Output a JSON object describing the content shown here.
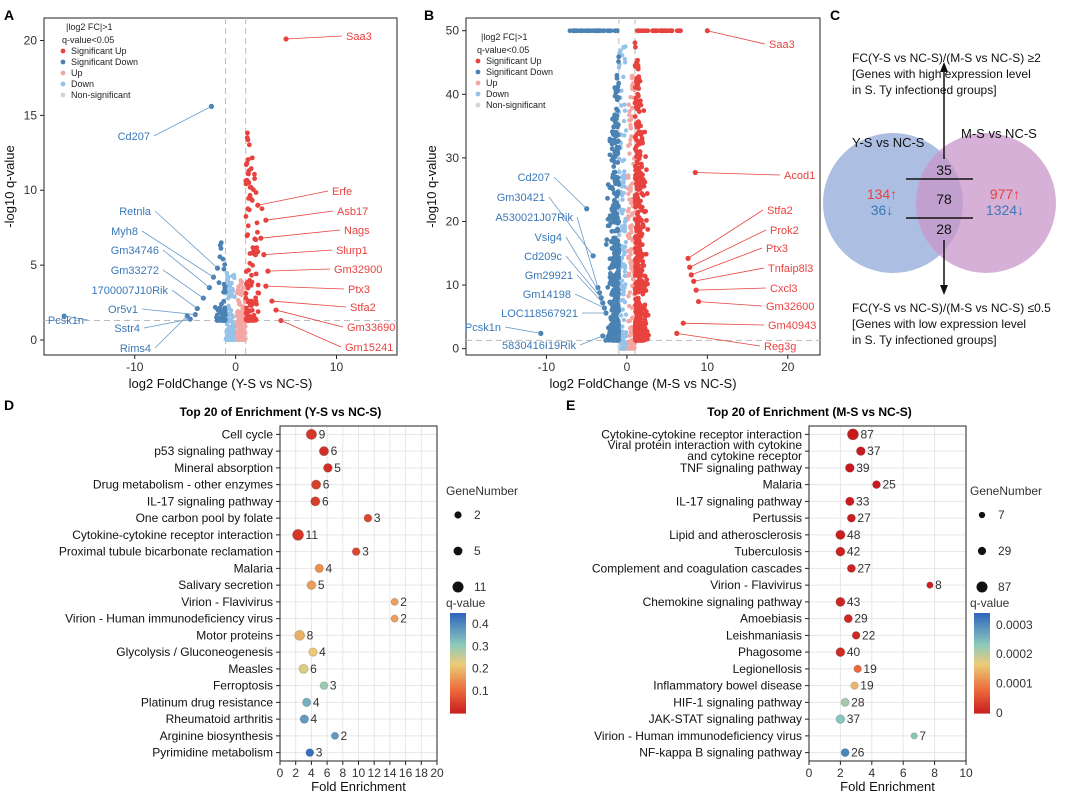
{
  "panels": {
    "a": "A",
    "b": "B",
    "c": "C",
    "d": "D",
    "e": "E"
  },
  "colors": {
    "sig_up": "#e8423f",
    "sig_down": "#4a82b4",
    "up": "#f4a6a3",
    "down": "#94c2e8",
    "nonsig": "#cfd5da"
  },
  "volcano_legend": {
    "line1": "|log2 FC|>1",
    "line2": "q-value<0.05",
    "items": [
      "Significant Up",
      "Significant Down",
      "Up",
      "Down",
      "Non-significant"
    ]
  },
  "chart_data": [
    {
      "type": "scatter",
      "name": "volcano-ys",
      "xlabel": "log2 FoldChange (Y-S vs NC-S)",
      "ylabel": "-log10 q-value",
      "xlim": [
        -19,
        16
      ],
      "ylim": [
        -1,
        21.5
      ],
      "xticks": [
        -10,
        0,
        10
      ],
      "yticks": [
        0,
        5,
        10,
        15,
        20
      ],
      "thresholds": {
        "x": [
          -1,
          1
        ],
        "y": 1.3
      },
      "up_labels": [
        {
          "gene": "Saa3",
          "x": 5.0,
          "y": 20.1
        },
        {
          "gene": "Erfe",
          "x": 2.2,
          "y": 9.0
        },
        {
          "gene": "Asb17",
          "x": 3.0,
          "y": 8.0
        },
        {
          "gene": "Nags",
          "x": 2.5,
          "y": 6.8
        },
        {
          "gene": "Slurp1",
          "x": 2.8,
          "y": 5.7
        },
        {
          "gene": "Gm32900",
          "x": 3.2,
          "y": 4.6
        },
        {
          "gene": "Ptx3",
          "x": 3.0,
          "y": 3.6
        },
        {
          "gene": "Stfa2",
          "x": 3.6,
          "y": 2.6
        },
        {
          "gene": "Gm33690",
          "x": 4.0,
          "y": 2.0
        },
        {
          "gene": "Gm15241",
          "x": 4.5,
          "y": 1.3
        }
      ],
      "down_labels": [
        {
          "gene": "Cd207",
          "x": -2.4,
          "y": 15.6
        },
        {
          "gene": "Retnla",
          "x": -1.8,
          "y": 4.8
        },
        {
          "gene": "Myh8",
          "x": -2.2,
          "y": 4.2
        },
        {
          "gene": "Gm34746",
          "x": -2.6,
          "y": 3.5
        },
        {
          "gene": "Gm33272",
          "x": -3.2,
          "y": 2.8
        },
        {
          "gene": "1700007J10Rik",
          "x": -3.8,
          "y": 2.1
        },
        {
          "gene": "Or5v1",
          "x": -4.0,
          "y": 1.7
        },
        {
          "gene": "Pcsk1n",
          "x": -17.0,
          "y": 1.6
        },
        {
          "gene": "Sstr4",
          "x": -4.5,
          "y": 1.4
        },
        {
          "gene": "Rims4",
          "x": -4.8,
          "y": 1.6
        }
      ]
    },
    {
      "type": "scatter",
      "name": "volcano-ms",
      "xlabel": "log2 FoldChange (M-S vs NC-S)",
      "ylabel": "-log10 q-value",
      "xlim": [
        -20,
        24
      ],
      "ylim": [
        -1,
        52
      ],
      "xticks": [
        -10,
        0,
        10,
        20
      ],
      "yticks": [
        0,
        10,
        20,
        30,
        40,
        50
      ],
      "thresholds": {
        "x": [
          -1,
          1
        ],
        "y": 1.3
      },
      "up_labels": [
        {
          "gene": "Saa3",
          "x": 10.0,
          "y": 50.0
        },
        {
          "gene": "Acod1",
          "x": 8.5,
          "y": 27.7
        },
        {
          "gene": "Stfa2",
          "x": 7.6,
          "y": 14.2
        },
        {
          "gene": "Prok2",
          "x": 7.8,
          "y": 12.8
        },
        {
          "gene": "Ptx3",
          "x": 8.0,
          "y": 11.6
        },
        {
          "gene": "Tnfaip8l3",
          "x": 8.3,
          "y": 10.6
        },
        {
          "gene": "Cxcl3",
          "x": 8.6,
          "y": 9.2
        },
        {
          "gene": "Gm32600",
          "x": 8.9,
          "y": 7.4
        },
        {
          "gene": "Gm40943",
          "x": 7.0,
          "y": 4.0
        },
        {
          "gene": "Reg3g",
          "x": 6.2,
          "y": 2.4
        }
      ],
      "down_labels": [
        {
          "gene": "Cd207",
          "x": -5.0,
          "y": 22.0
        },
        {
          "gene": "Gm30421",
          "x": -4.2,
          "y": 14.6
        },
        {
          "gene": "A530021J07Rik",
          "x": -3.6,
          "y": 9.6
        },
        {
          "gene": "Vsig4",
          "x": -3.4,
          "y": 8.8
        },
        {
          "gene": "Cd209c",
          "x": -3.2,
          "y": 8.0
        },
        {
          "gene": "Gm29921",
          "x": -3.0,
          "y": 7.2
        },
        {
          "gene": "Gm14198",
          "x": -2.8,
          "y": 6.4
        },
        {
          "gene": "LOC118567921",
          "x": -2.6,
          "y": 5.6
        },
        {
          "gene": "Pcsk1n",
          "x": -10.7,
          "y": 2.4
        },
        {
          "gene": "5830416I19Rik",
          "x": -3.0,
          "y": 2.0
        }
      ]
    },
    {
      "type": "bubble",
      "name": "enrichment-ys",
      "title": "Top 20 of  Enrichment (Y-S vs NC-S)",
      "xlabel": "Fold Enrichment",
      "xlim": [
        0,
        20
      ],
      "xticks": [
        0,
        2,
        4,
        6,
        8,
        10,
        12,
        14,
        16,
        18,
        20
      ],
      "legend_size_title": "GeneNumber",
      "legend_size_values": [
        2,
        5,
        11
      ],
      "legend_color_title": "q-value",
      "colorbar_max": 0.45,
      "colorbar_ticks": [
        0.4,
        0.3,
        0.2,
        0.1
      ],
      "terms": [
        {
          "term": "Cell cycle",
          "fe": 4.0,
          "n": 9,
          "q": 0.04
        },
        {
          "term": "p53 signaling pathway",
          "fe": 5.6,
          "n": 6,
          "q": 0.03
        },
        {
          "term": "Mineral absorption",
          "fe": 6.1,
          "n": 5,
          "q": 0.03
        },
        {
          "term": "Drug metabolism - other enzymes",
          "fe": 4.6,
          "n": 6,
          "q": 0.05
        },
        {
          "term": "IL-17 signaling pathway",
          "fe": 4.5,
          "n": 6,
          "q": 0.05
        },
        {
          "term": "One carbon pool by folate",
          "fe": 11.2,
          "n": 3,
          "q": 0.06
        },
        {
          "term": "Cytokine-cytokine receptor interaction",
          "fe": 2.3,
          "n": 11,
          "q": 0.04
        },
        {
          "term": "Proximal tubule bicarbonate reclamation",
          "fe": 9.7,
          "n": 3,
          "q": 0.06
        },
        {
          "term": "Malaria",
          "fe": 5.0,
          "n": 4,
          "q": 0.15
        },
        {
          "term": "Salivary secretion",
          "fe": 4.0,
          "n": 5,
          "q": 0.17
        },
        {
          "term": "Virion - Flavivirus",
          "fe": 14.6,
          "n": 2,
          "q": 0.17
        },
        {
          "term": "Virion - Human immunodeficiency virus",
          "fe": 14.6,
          "n": 2,
          "q": 0.17
        },
        {
          "term": "Motor proteins",
          "fe": 2.5,
          "n": 8,
          "q": 0.19
        },
        {
          "term": "Glycolysis / Gluconeogenesis",
          "fe": 4.2,
          "n": 4,
          "q": 0.22
        },
        {
          "term": "Measles",
          "fe": 3.0,
          "n": 6,
          "q": 0.24
        },
        {
          "term": "Ferroptosis",
          "fe": 5.6,
          "n": 3,
          "q": 0.3
        },
        {
          "term": "Platinum drug resistance",
          "fe": 3.4,
          "n": 4,
          "q": 0.35
        },
        {
          "term": "Rheumatoid arthritis",
          "fe": 3.1,
          "n": 4,
          "q": 0.38
        },
        {
          "term": "Arginine biosynthesis",
          "fe": 7.0,
          "n": 2,
          "q": 0.38
        },
        {
          "term": "Pyrimidine metabolism",
          "fe": 3.8,
          "n": 3,
          "q": 0.44
        }
      ]
    },
    {
      "type": "bubble",
      "name": "enrichment-ms",
      "title": "Top 20 of  Enrichment (M-S vs NC-S)",
      "xlabel": "Fold Enrichment",
      "xlim": [
        0,
        10
      ],
      "xticks": [
        0,
        2,
        4,
        6,
        8,
        10
      ],
      "legend_size_title": "GeneNumber",
      "legend_size_values": [
        7,
        29,
        87
      ],
      "legend_color_title": "q-value",
      "colorbar_max": 0.00034,
      "colorbar_ticks": [
        0.0003,
        0.0002,
        0.0001,
        0
      ],
      "colorbar_tick_labels": [
        "0.0003",
        "0.0002",
        "0.0001",
        "0"
      ],
      "terms": [
        {
          "term": "Cytokine-cytokine receptor interaction",
          "fe": 2.8,
          "n": 87,
          "q": 1e-06
        },
        {
          "term": "Viral protein interaction with cytokine\nand cytokine receptor",
          "fe": 3.3,
          "n": 37,
          "q": 1e-06
        },
        {
          "term": "TNF signaling pathway",
          "fe": 2.6,
          "n": 39,
          "q": 1e-06
        },
        {
          "term": "Malaria",
          "fe": 4.3,
          "n": 25,
          "q": 2e-06
        },
        {
          "term": "IL-17 signaling pathway",
          "fe": 2.6,
          "n": 33,
          "q": 2e-06
        },
        {
          "term": "Pertussis",
          "fe": 2.7,
          "n": 27,
          "q": 4e-06
        },
        {
          "term": "Lipid and atherosclerosis",
          "fe": 2.0,
          "n": 48,
          "q": 6e-06
        },
        {
          "term": "Tuberculosis",
          "fe": 2.0,
          "n": 42,
          "q": 8e-06
        },
        {
          "term": "Complement and coagulation cascades",
          "fe": 2.7,
          "n": 27,
          "q": 1e-05
        },
        {
          "term": "Virion - Flavivirus",
          "fe": 7.7,
          "n": 8,
          "q": 1e-05
        },
        {
          "term": "Chemokine signaling pathway",
          "fe": 2.0,
          "n": 43,
          "q": 1.2e-05
        },
        {
          "term": "Amoebiasis",
          "fe": 2.5,
          "n": 29,
          "q": 1.4e-05
        },
        {
          "term": "Leishmaniasis",
          "fe": 3.0,
          "n": 22,
          "q": 1.5e-05
        },
        {
          "term": "Phagosome",
          "fe": 2.0,
          "n": 40,
          "q": 1.8e-05
        },
        {
          "term": "Legionellosis",
          "fe": 3.1,
          "n": 19,
          "q": 8e-05
        },
        {
          "term": "Inflammatory bowel disease",
          "fe": 2.9,
          "n": 19,
          "q": 0.00015
        },
        {
          "term": "HIF-1 signaling pathway",
          "fe": 2.3,
          "n": 28,
          "q": 0.00022
        },
        {
          "term": "JAK-STAT signaling pathway",
          "fe": 2.0,
          "n": 37,
          "q": 0.00024
        },
        {
          "term": "Virion - Human immunodeficiency virus",
          "fe": 6.7,
          "n": 7,
          "q": 0.00024
        },
        {
          "term": "NF-kappa B signaling pathway",
          "fe": 2.3,
          "n": 26,
          "q": 0.00031
        }
      ]
    }
  ],
  "venn": {
    "left_title": "Y-S vs NC-S",
    "right_title": "M-S vs NC-S",
    "left_up": "134↑",
    "left_down": "36↓",
    "right_up": "977↑",
    "right_down": "1324↓",
    "mid_top": "35",
    "mid_center": "78",
    "mid_bottom": "28",
    "top_line1": "FC(Y-S vs NC-S)/(M-S vs NC-S) ≥2",
    "top_line2": "[Genes with high expression level",
    "top_line3": "in S. Ty infectioned groups]",
    "bottom_line1": "FC(Y-S vs NC-S)/(M-S vs NC-S) ≤0.5",
    "bottom_line2": "[Genes with low expression level",
    "bottom_line3": "in S. Ty infectioned groups]"
  }
}
